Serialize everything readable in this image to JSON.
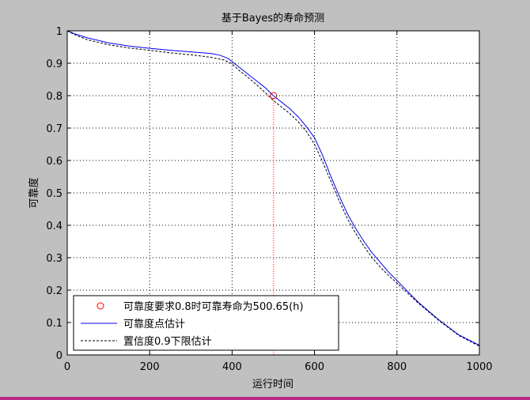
{
  "chart_data": {
    "type": "line",
    "title": "基于Bayes的寿命预测",
    "xlabel": "运行时间",
    "ylabel": "可靠度",
    "xlim": [
      0,
      1000
    ],
    "ylim": [
      0,
      1
    ],
    "grid": true,
    "x_ticks": [
      "0",
      "200",
      "400",
      "600",
      "800",
      "1000"
    ],
    "y_ticks": [
      "0",
      "0.1",
      "0.2",
      "0.3",
      "0.4",
      "0.5",
      "0.6",
      "0.7",
      "0.8",
      "0.9",
      "1"
    ],
    "legend_position": "bottom-left",
    "legend": [
      "可靠度要求0.8时可靠寿命为500.65(h)",
      "可靠度点估计",
      "置信度0.9下限估计"
    ],
    "marker_point": {
      "x": 500.65,
      "y": 0.8
    },
    "series": [
      {
        "style": "solid",
        "color": "#0000ff",
        "x": [
          0,
          20,
          50,
          100,
          150,
          200,
          250,
          300,
          350,
          370,
          390,
          400,
          420,
          440,
          460,
          480,
          500,
          520,
          540,
          560,
          580,
          600,
          620,
          640,
          660,
          680,
          700,
          720,
          740,
          760,
          780,
          800,
          850,
          900,
          950,
          1000
        ],
        "y": [
          1.0,
          0.99,
          0.978,
          0.963,
          0.953,
          0.946,
          0.94,
          0.935,
          0.93,
          0.925,
          0.915,
          0.905,
          0.885,
          0.865,
          0.845,
          0.825,
          0.8,
          0.78,
          0.76,
          0.735,
          0.705,
          0.67,
          0.615,
          0.55,
          0.49,
          0.435,
          0.39,
          0.35,
          0.315,
          0.285,
          0.255,
          0.23,
          0.165,
          0.11,
          0.062,
          0.03
        ]
      },
      {
        "style": "dashed",
        "color": "#000000",
        "x": [
          0,
          20,
          50,
          100,
          150,
          200,
          250,
          300,
          350,
          380,
          400,
          420,
          440,
          460,
          480,
          500,
          520,
          540,
          560,
          580,
          600,
          620,
          640,
          660,
          680,
          700,
          720,
          740,
          760,
          780,
          800,
          850,
          900,
          950,
          1000
        ],
        "y": [
          1.0,
          0.987,
          0.972,
          0.957,
          0.947,
          0.94,
          0.932,
          0.926,
          0.918,
          0.91,
          0.898,
          0.875,
          0.855,
          0.833,
          0.81,
          0.785,
          0.765,
          0.745,
          0.72,
          0.69,
          0.65,
          0.595,
          0.535,
          0.475,
          0.42,
          0.375,
          0.335,
          0.3,
          0.27,
          0.245,
          0.222,
          0.162,
          0.108,
          0.06,
          0.027
        ]
      }
    ]
  }
}
